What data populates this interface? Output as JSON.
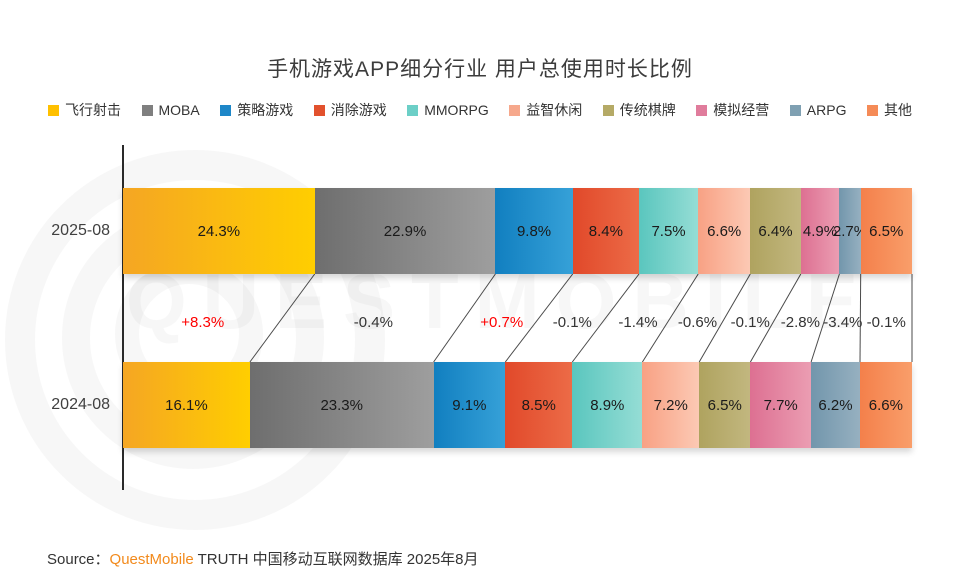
{
  "title": "手机游戏APP细分行业 用户总使用时长比例",
  "watermark_text": "QUESTMOBILE",
  "source": {
    "prefix": "Source：",
    "brand": "QuestMobile",
    "suffix": " TRUTH 中国移动互联网数据库 2025年8月",
    "brand_color": "#F28A1C"
  },
  "chart_data": {
    "type": "bar",
    "subtype": "horizontal-stacked-100-comparison",
    "unit": "%",
    "title": "手机游戏APP细分行业 用户总使用时长比例",
    "legend_position": "top",
    "categories": [
      "飞行射击",
      "MOBA",
      "策略游戏",
      "消除游戏",
      "MMORPG",
      "益智休闲",
      "传统棋牌",
      "模拟经营",
      "ARPG",
      "其他"
    ],
    "series": [
      {
        "name": "2025-08",
        "values": [
          24.3,
          22.9,
          9.8,
          8.4,
          7.5,
          6.6,
          6.4,
          4.9,
          2.7,
          6.5
        ]
      },
      {
        "name": "2024-08",
        "values": [
          16.1,
          23.3,
          9.1,
          8.5,
          8.9,
          7.2,
          6.5,
          7.7,
          6.2,
          6.6
        ]
      }
    ],
    "changes": [
      "+8.3%",
      "-0.4%",
      "+0.7%",
      "-0.1%",
      "-1.4%",
      "-0.6%",
      "-0.1%",
      "-2.8%",
      "-3.4%",
      "-0.1%"
    ],
    "change_positive_color": "#FF0000",
    "change_negative_color": "#333333",
    "legend_colors": [
      "#FFC000",
      "#7F7F7F",
      "#1E87C8",
      "#E2512D",
      "#6CCFC7",
      "#F6A88C",
      "#B5AA66",
      "#E07C9C",
      "#7FA0B2",
      "#F58B57"
    ],
    "segment_gradient_left": [
      "#F5A623",
      "#6E6E6E",
      "#117FC0",
      "#E1492A",
      "#5AC6BE",
      "#F8A184",
      "#AFA35F",
      "#DD7092",
      "#7296AC",
      "#F4804B"
    ],
    "segment_gradient_right": [
      "#FFCE00",
      "#9E9E9E",
      "#36A1D8",
      "#EC6B47",
      "#95DDD5",
      "#FCC9B4",
      "#C2B77F",
      "#EB9DB2",
      "#96B0C0",
      "#F99E6A"
    ],
    "connector_color": "#4a4a4a"
  }
}
